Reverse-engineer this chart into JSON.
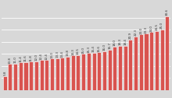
{
  "values": [
    5.8,
    10.8,
    11.0,
    11.4,
    11.6,
    11.8,
    12.0,
    12.4,
    12.4,
    13.0,
    13.3,
    13.4,
    13.8,
    14.3,
    14.5,
    15.0,
    15.3,
    15.4,
    15.6,
    16.0,
    16.7,
    18.0,
    18.3,
    18.4,
    20.9,
    22.3,
    23.0,
    23.3,
    24.0,
    24.5,
    25.0,
    30.6
  ],
  "bar_color": "#d9534f",
  "bar_edge_color": "#ffffff",
  "background_color": "#d8d8d8",
  "plot_bg_color": "#d8d8d8",
  "grid_color": "#ffffff",
  "ylim": [
    0,
    34
  ],
  "label_color": "#333333",
  "label_fontsize": 3.0
}
